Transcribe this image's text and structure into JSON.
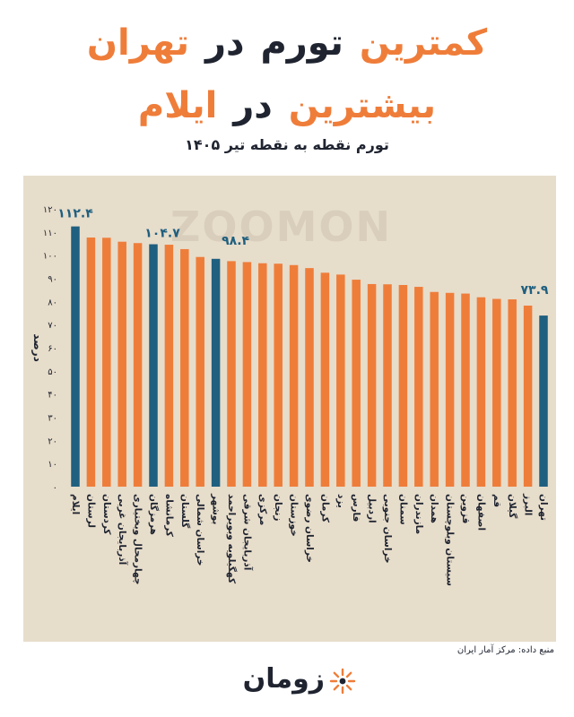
{
  "title_line1": {
    "w1": "کمترین",
    "w2": "تورم",
    "w3": "در",
    "w4": "تهران"
  },
  "title_line2": {
    "w1": "بیشترین",
    "w2": "در",
    "w3": "ایلام"
  },
  "subtitle": "تورم نقطه به نقطه تیر ۱۴۰۵",
  "source": "منبع داده: مرکز آمار ایران",
  "brand": {
    "name": "زومان",
    "watermark": "ZOOMON",
    "icon": "zoomon-logo-icon"
  },
  "colors": {
    "orange": "#ef7d3a",
    "blue": "#1f5f7f",
    "panel": "#e7ddcb",
    "title_dark": "#1f2430"
  },
  "chart_data": {
    "type": "bar",
    "ylabel": "درصد",
    "ylim": [
      0,
      120
    ],
    "yticks": [
      0,
      10,
      20,
      30,
      40,
      50,
      60,
      70,
      80,
      90,
      100,
      110,
      120
    ],
    "grid": false,
    "categories": [
      "ایلام",
      "لرستان",
      "کردستان",
      "آذربایجان غربی",
      "چهارمحال وبختیاری",
      "هرمزگان",
      "کرمانشاه",
      "گلستان",
      "خراسان شمالی",
      "بوشهر",
      "کهگیلویه وبویراحمد",
      "آذربایجان شرقی",
      "مرکزی",
      "زنجان",
      "خوزستان",
      "خراسان رضوی",
      "کرمان",
      "یزد",
      "فارس",
      "اردبیل",
      "خراسان جنوبی",
      "سمنان",
      "مازندران",
      "همدان",
      "سیستان وبلوچستان",
      "قزوین",
      "اصفهان",
      "قم",
      "گیلان",
      "البرز",
      "تهران"
    ],
    "values": [
      112.4,
      107.6,
      107.5,
      105.8,
      105.2,
      104.7,
      104.5,
      102.6,
      99.2,
      98.4,
      97.4,
      97.0,
      96.5,
      96.3,
      95.7,
      94.4,
      92.4,
      91.6,
      89.4,
      87.5,
      87.4,
      87.1,
      86.3,
      84.1,
      83.7,
      83.4,
      81.8,
      81.1,
      80.9,
      78.2,
      73.9
    ],
    "highlighted": [
      0,
      5,
      9,
      30
    ],
    "data_labels": [
      {
        "index": 0,
        "text": "۱۱۲.۴"
      },
      {
        "index": 5,
        "text": "۱۰۴.۷"
      },
      {
        "index": 9,
        "text": "۹۸.۴"
      },
      {
        "index": 30,
        "text": "۷۳.۹"
      }
    ]
  }
}
